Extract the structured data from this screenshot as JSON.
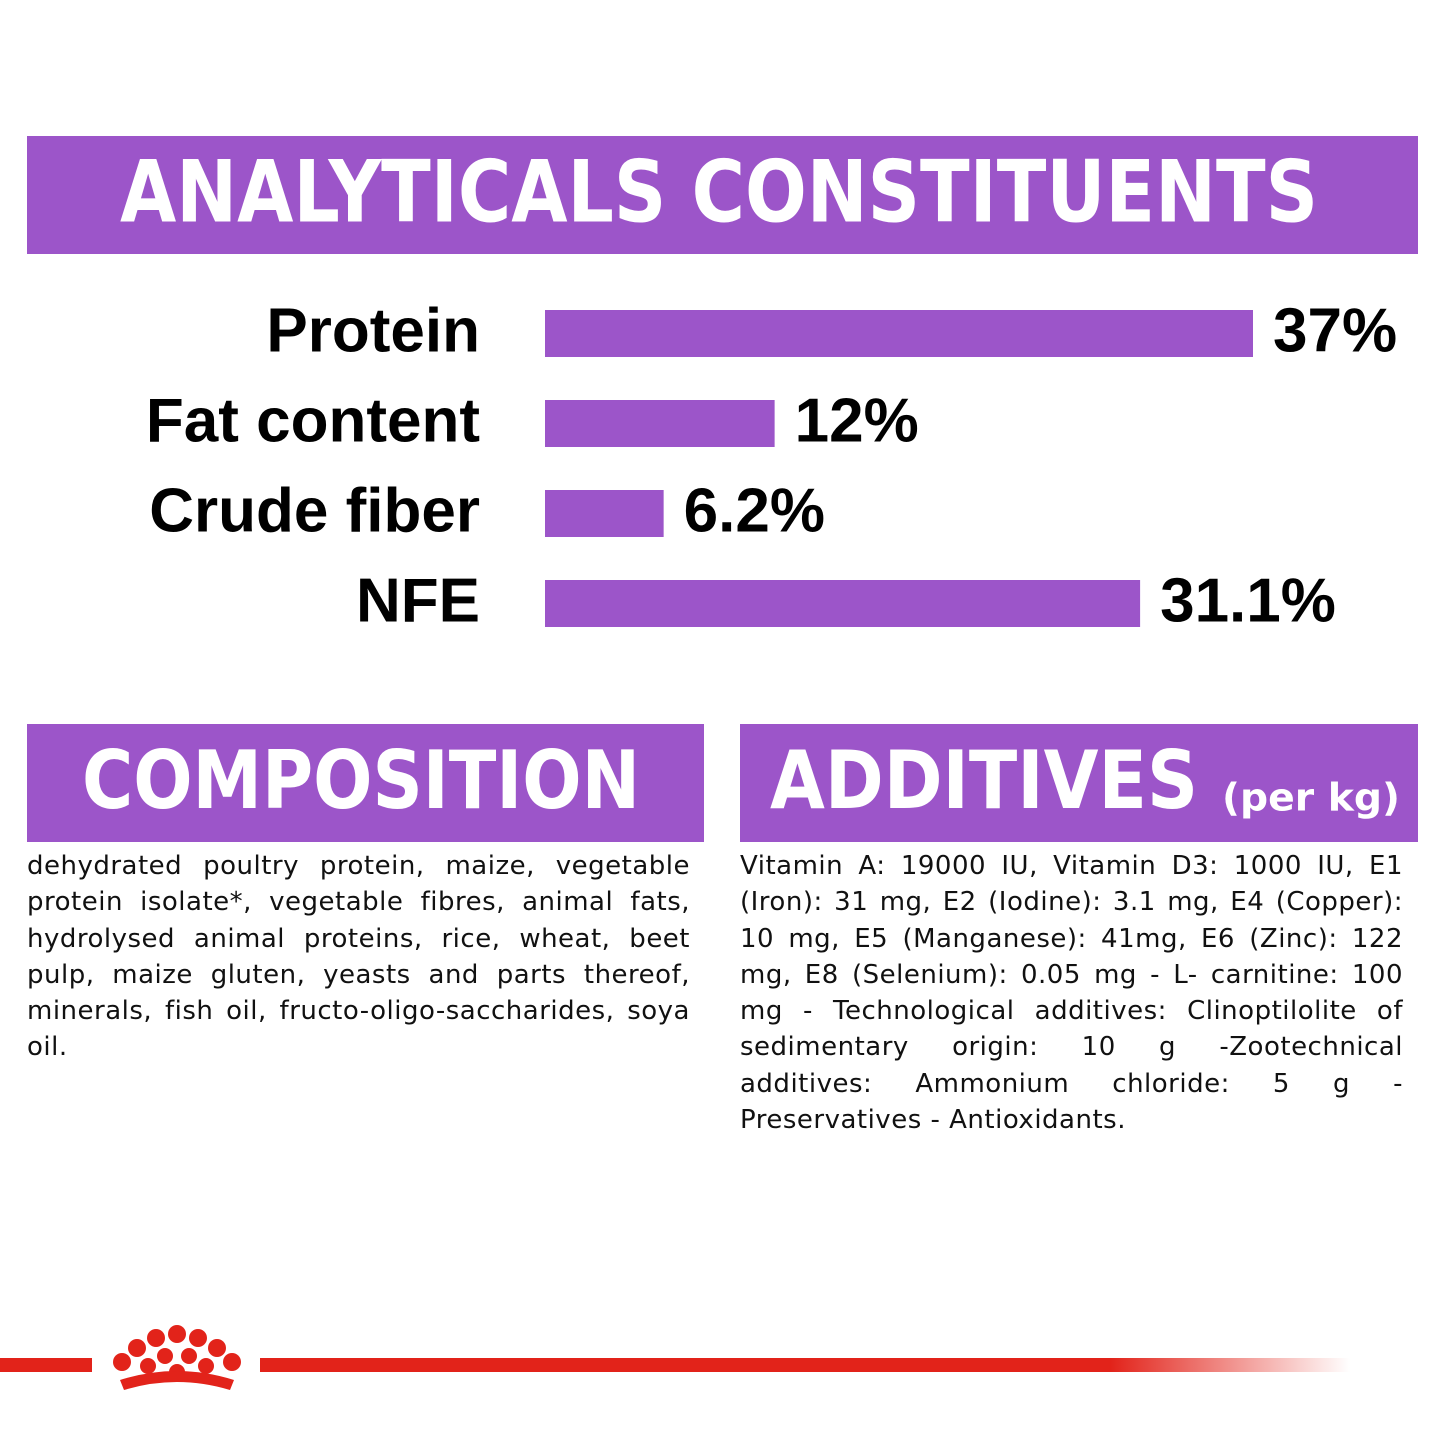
{
  "chart_data": {
    "type": "bar",
    "title": "ANALYTICALS CONSTITUENTS",
    "categories": [
      "Protein",
      "Fat content",
      "Crude fiber",
      "NFE"
    ],
    "values": [
      37,
      12,
      6.2,
      31.1
    ],
    "value_labels": [
      "37%",
      "12%",
      "6.2%",
      "31.1%"
    ],
    "color": "#9c55c9"
  },
  "composition": {
    "title": "COMPOSITION",
    "text": "dehydrated poultry protein, maize, vegetable protein isolate*, vegetable fibres, animal fats, hydrolysed animal proteins, rice, wheat, beet pulp, maize gluten, yeasts and parts thereof, minerals, fish oil, fructo-oligo-saccharides, soya oil."
  },
  "additives": {
    "title": "ADDITIVES",
    "unit": "(per kg)",
    "text": "Vitamin A: 19000 IU, Vitamin D3: 1000 IU, E1 (Iron): 31 mg, E2 (Iodine): 3.1 mg, E4 (Copper): 10 mg, E5 (Manganese): 41mg, E6 (Zinc): 122 mg, E8 (Selenium): 0.05 mg - L- carnitine: 100 mg - Technological additives: Clinoptilolite of sedimentary origin: 10 g -Zootechnical additives: Ammonium chloride: 5 g - Preservatives - Antioxidants."
  }
}
